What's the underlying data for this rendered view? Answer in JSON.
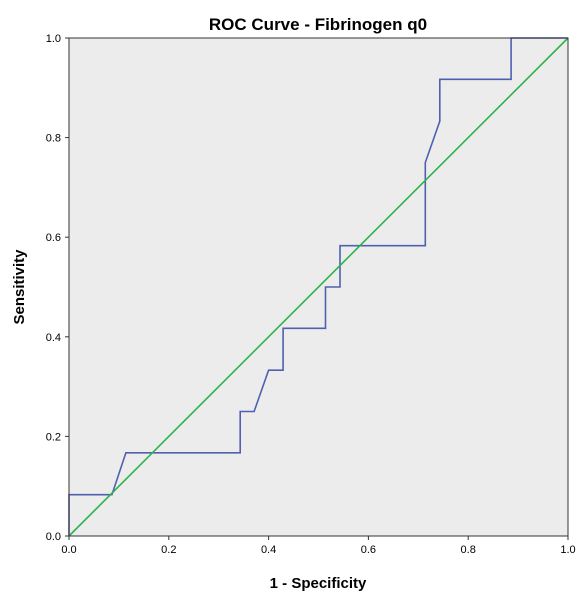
{
  "chart_data": {
    "type": "line",
    "title": "ROC Curve - Fibrinogen q0",
    "xlabel": "1 - Specificity",
    "ylabel": "Sensitivity",
    "xlim": [
      0,
      1
    ],
    "ylim": [
      0,
      1
    ],
    "x_ticks": [
      "0.0",
      "0.2",
      "0.4",
      "0.6",
      "0.8",
      "1.0"
    ],
    "y_ticks": [
      "0.0",
      "0.2",
      "0.4",
      "0.6",
      "0.8",
      "1.0"
    ],
    "grid": false,
    "legend": "none",
    "series": [
      {
        "color": "#5060b0",
        "x": [
          0.0,
          0.0,
          0.086,
          0.114,
          0.343,
          0.343,
          0.371,
          0.4,
          0.429,
          0.429,
          0.514,
          0.514,
          0.543,
          0.543,
          0.714,
          0.714,
          0.743,
          0.743,
          0.886,
          0.886,
          1.0
        ],
        "y": [
          0.0,
          0.083,
          0.083,
          0.167,
          0.167,
          0.25,
          0.25,
          0.333,
          0.333,
          0.417,
          0.417,
          0.5,
          0.5,
          0.583,
          0.583,
          0.75,
          0.833,
          0.917,
          0.917,
          1.0,
          1.0
        ]
      },
      {
        "color": "#2db34a",
        "x": [
          0.0,
          1.0
        ],
        "y": [
          0.0,
          1.0
        ]
      }
    ]
  },
  "colors": {
    "plot_background": "#ececec",
    "axis": "#333333"
  }
}
